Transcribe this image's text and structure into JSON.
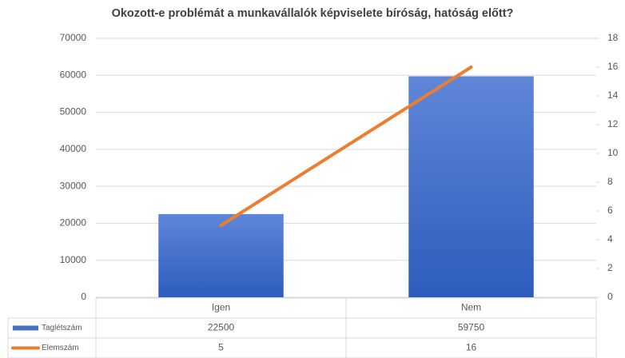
{
  "chart_data": {
    "type": "bar",
    "title": "Okozott-e problémát a munkavállalók képviselete bíróság, hatóság előtt?",
    "categories": [
      "Igen",
      "Nem"
    ],
    "series": [
      {
        "name": "Taglétszám",
        "type": "bar",
        "color": "#4472c4",
        "values": [
          22500,
          59750
        ]
      },
      {
        "name": "Elemszám",
        "type": "line",
        "axis": "y2",
        "color": "#ed7d31",
        "values": [
          5,
          16
        ]
      }
    ],
    "ylim": [
      0,
      70000
    ],
    "yticks": [
      0,
      10000,
      20000,
      30000,
      40000,
      50000,
      60000,
      70000
    ],
    "y2lim": [
      0,
      18
    ],
    "y2ticks": [
      0,
      2,
      4,
      6,
      8,
      10,
      12,
      14,
      16,
      18
    ],
    "grid": true,
    "data_table": true
  }
}
